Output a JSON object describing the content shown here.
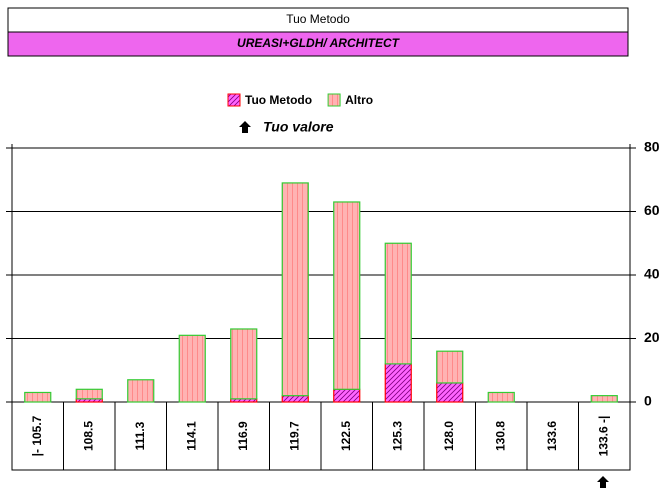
{
  "chart_data": {
    "type": "bar",
    "title": "Tuo Metodo",
    "subtitle": "UREASI+GLDH/ ARCHITECT",
    "annotation": "Tuo valore",
    "categories": [
      "|- 105.7",
      "108.5",
      "111.3",
      "114.1",
      "116.9",
      "119.7",
      "122.5",
      "125.3",
      "128.0",
      "130.8",
      "133.6",
      "133.6 -|"
    ],
    "series": [
      {
        "name": "Tuo Metodo",
        "color": "#ff66ff",
        "edgecolor": "#ff0000",
        "values": [
          0,
          1,
          0,
          0,
          1,
          2,
          4,
          12,
          6,
          0,
          0,
          0
        ]
      },
      {
        "name": "Altro",
        "color": "#ffb3b3",
        "edgecolor": "#33cc33",
        "values": [
          3,
          3,
          7,
          21,
          22,
          67,
          59,
          38,
          10,
          3,
          0,
          2
        ]
      }
    ],
    "stacked": true,
    "ylim": [
      0,
      80
    ],
    "yticks": [
      0,
      20,
      40,
      60,
      80
    ],
    "grid": true
  }
}
